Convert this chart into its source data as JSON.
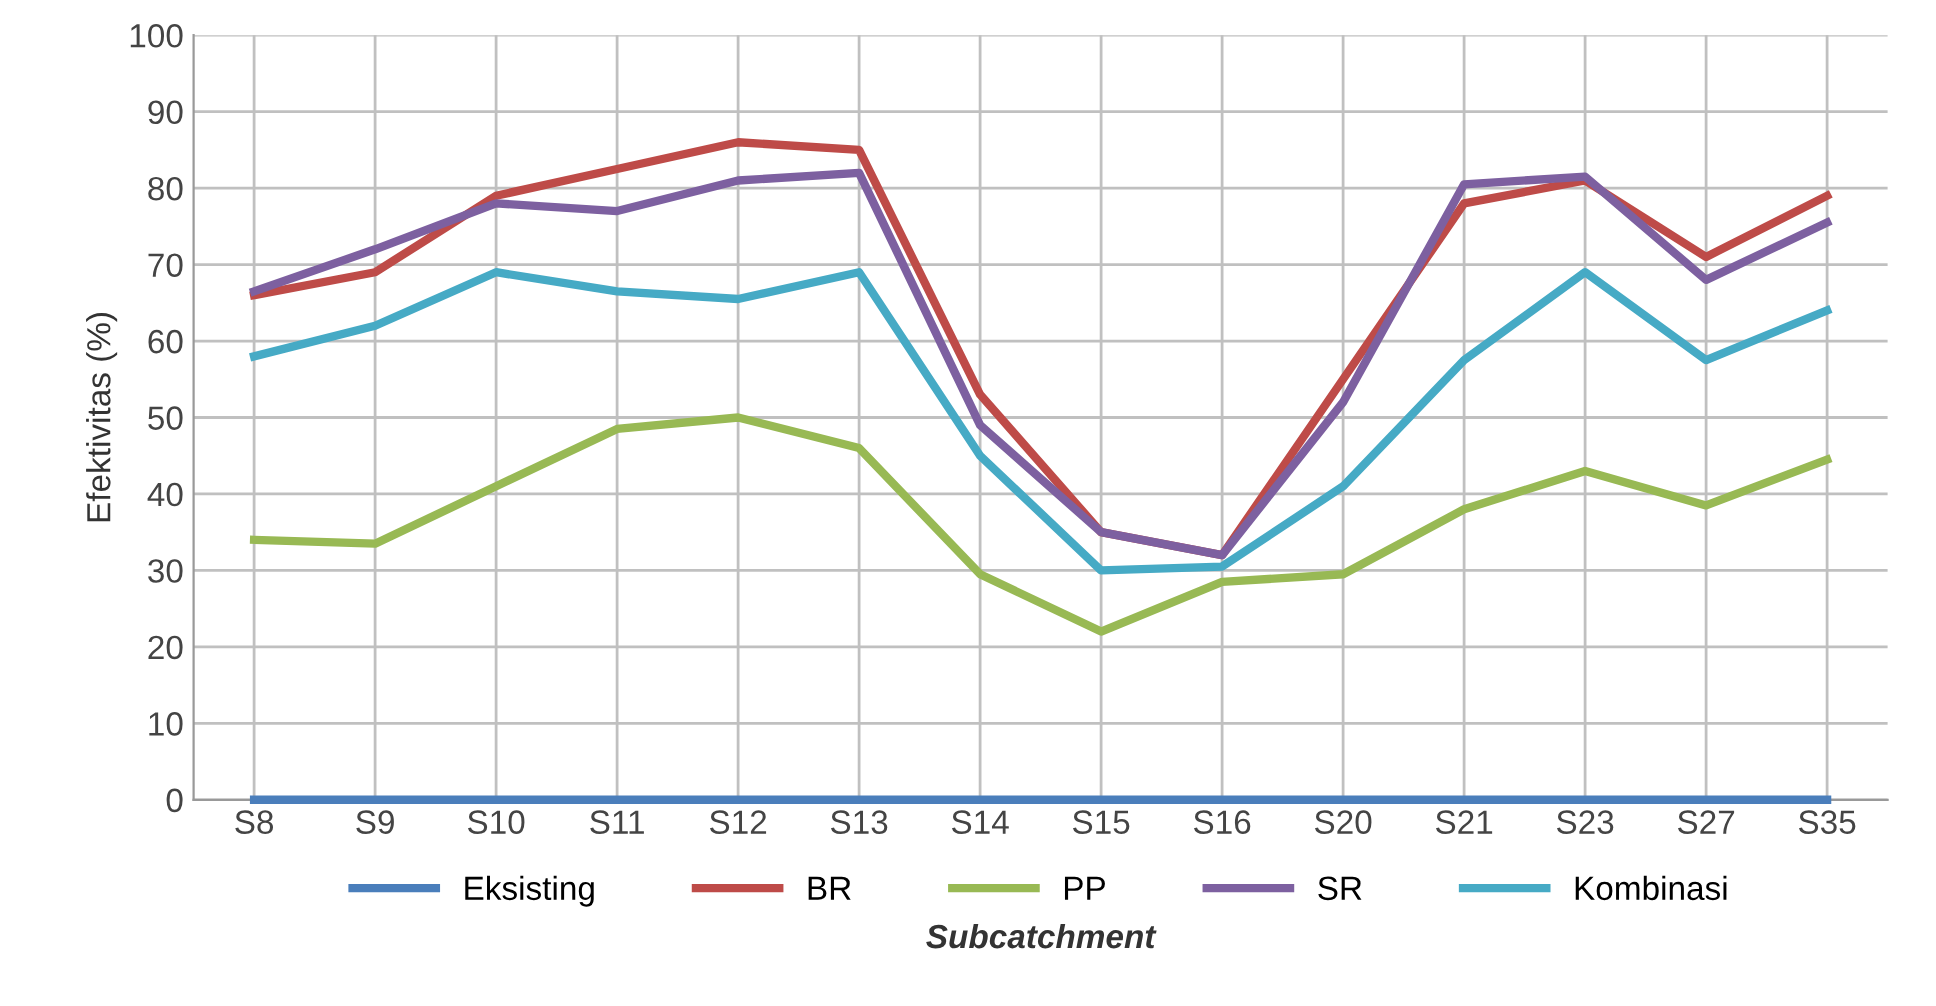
{
  "chart_data": {
    "type": "line",
    "xlabel": "Subcatchment",
    "ylabel": "Efektivitas (%)",
    "categories": [
      "S8",
      "S9",
      "S10",
      "S11",
      "S12",
      "S13",
      "S14",
      "S15",
      "S16",
      "S20",
      "S21",
      "S23",
      "S27",
      "S35"
    ],
    "series": [
      {
        "name": "Eksisting",
        "color": "#4a7ebb",
        "values": [
          0,
          0,
          0,
          0,
          0,
          0,
          0,
          0,
          0,
          0,
          0,
          0,
          0,
          0
        ]
      },
      {
        "name": "BR",
        "color": "#be4b48",
        "values": [
          66,
          69,
          79,
          82.5,
          86,
          85,
          53,
          35,
          32,
          55,
          78,
          81,
          71,
          79
        ]
      },
      {
        "name": "PP",
        "color": "#98b954",
        "values": [
          34,
          33.5,
          41,
          48.5,
          50,
          46,
          29.5,
          22,
          28.5,
          29.5,
          38,
          43,
          38.5,
          44.5
        ]
      },
      {
        "name": "SR",
        "color": "#7d60a0",
        "values": [
          66.5,
          72,
          78,
          77,
          81,
          82,
          49,
          35,
          32,
          52,
          80.5,
          81.5,
          68,
          75.5
        ]
      },
      {
        "name": "Kombinasi",
        "color": "#46aac5",
        "values": [
          58,
          62,
          69,
          66.5,
          65.5,
          69,
          45,
          30,
          30.5,
          41,
          57.5,
          69,
          57.5,
          64
        ]
      }
    ],
    "ylim": [
      0,
      100
    ],
    "yticks": [
      0,
      10,
      20,
      30,
      40,
      50,
      60,
      70,
      80,
      90,
      100
    ],
    "grid": true,
    "legend": "bottom",
    "marker": "none",
    "line_style": "solid"
  }
}
